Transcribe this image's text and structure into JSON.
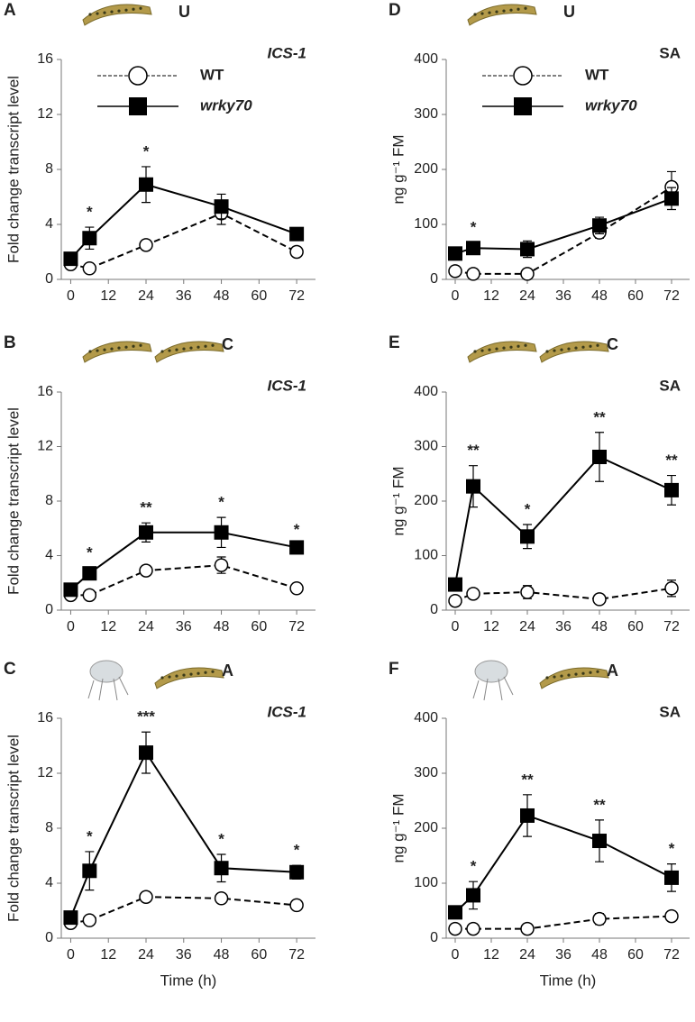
{
  "chart_data": [
    {
      "type": "line",
      "panel": "A",
      "treatment": "U",
      "title": "ICS-1",
      "title_italic": true,
      "ylabel": "Fold change transcript level",
      "x": [
        0,
        6,
        24,
        48,
        72
      ],
      "xlim": [
        -3,
        78
      ],
      "xticks": [
        0,
        12,
        24,
        36,
        48,
        60,
        72
      ],
      "ylim": [
        0,
        16
      ],
      "yticks": [
        0,
        4,
        8,
        12,
        16
      ],
      "legend": true,
      "series": [
        {
          "name": "WT",
          "color": "#000000",
          "line_style": "dashed",
          "marker": "circle",
          "values": [
            1.1,
            0.8,
            2.5,
            4.8,
            2.0
          ],
          "errors": [
            0.2,
            0.2,
            0.3,
            0.8,
            0.3
          ]
        },
        {
          "name": "wrky70",
          "name_italic": true,
          "color": "#000000",
          "line_style": "solid",
          "marker": "square",
          "values": [
            1.5,
            3.0,
            6.9,
            5.3,
            3.3
          ],
          "errors": [
            0.3,
            0.8,
            1.3,
            0.9,
            0.3
          ]
        }
      ],
      "significance": [
        null,
        "*",
        "*",
        null,
        null
      ]
    },
    {
      "type": "line",
      "panel": "B",
      "treatment": "C",
      "title": "ICS-1",
      "title_italic": true,
      "ylabel": "Fold change transcript level",
      "x": [
        0,
        6,
        24,
        48,
        72
      ],
      "xlim": [
        -3,
        78
      ],
      "xticks": [
        0,
        12,
        24,
        36,
        48,
        60,
        72
      ],
      "ylim": [
        0,
        16
      ],
      "yticks": [
        0,
        4,
        8,
        12,
        16
      ],
      "series": [
        {
          "color": "#000000",
          "line_style": "dashed",
          "marker": "circle",
          "values": [
            1.1,
            1.1,
            2.9,
            3.3,
            1.6
          ],
          "errors": [
            0.2,
            0.2,
            0.2,
            0.6,
            0.2
          ]
        },
        {
          "color": "#000000",
          "line_style": "solid",
          "marker": "square",
          "values": [
            1.5,
            2.7,
            5.7,
            5.7,
            4.6
          ],
          "errors": [
            0.2,
            0.4,
            0.7,
            1.1,
            0.2
          ]
        }
      ],
      "significance": [
        null,
        "*",
        "**",
        "*",
        "*"
      ]
    },
    {
      "type": "line",
      "panel": "C",
      "treatment": "A",
      "title": "ICS-1",
      "title_italic": true,
      "ylabel": "Fold change transcript level",
      "xlabel": "Time (h)",
      "x": [
        0,
        6,
        24,
        48,
        72
      ],
      "xlim": [
        -3,
        78
      ],
      "xticks": [
        0,
        12,
        24,
        36,
        48,
        60,
        72
      ],
      "ylim": [
        0,
        16
      ],
      "yticks": [
        0,
        4,
        8,
        12,
        16
      ],
      "series": [
        {
          "color": "#000000",
          "line_style": "dashed",
          "marker": "circle",
          "values": [
            1.1,
            1.3,
            3.0,
            2.9,
            2.4
          ],
          "errors": [
            0.2,
            0.2,
            0.2,
            0.3,
            0.3
          ]
        },
        {
          "color": "#000000",
          "line_style": "solid",
          "marker": "square",
          "values": [
            1.5,
            4.9,
            13.5,
            5.1,
            4.8
          ],
          "errors": [
            0.3,
            1.4,
            1.5,
            1.0,
            0.5
          ]
        }
      ],
      "significance": [
        null,
        "*",
        "***",
        "*",
        "*"
      ]
    },
    {
      "type": "line",
      "panel": "D",
      "treatment": "U",
      "title": "SA",
      "ylabel": "ng g⁻¹ FM",
      "x": [
        0,
        6,
        24,
        48,
        72
      ],
      "xlim": [
        -3,
        78
      ],
      "xticks": [
        0,
        12,
        24,
        36,
        48,
        60,
        72
      ],
      "ylim": [
        0,
        400
      ],
      "yticks": [
        0,
        100,
        200,
        300,
        400
      ],
      "legend": true,
      "series": [
        {
          "name": "WT",
          "color": "#000000",
          "line_style": "dashed",
          "marker": "circle",
          "values": [
            15,
            10,
            10,
            85,
            168
          ],
          "errors": [
            8,
            5,
            5,
            10,
            28
          ]
        },
        {
          "name": "wrky70",
          "name_italic": true,
          "color": "#000000",
          "line_style": "solid",
          "marker": "square",
          "values": [
            47,
            57,
            55,
            98,
            147
          ],
          "errors": [
            10,
            10,
            15,
            15,
            20
          ]
        }
      ],
      "significance": [
        null,
        "*",
        null,
        null,
        null
      ]
    },
    {
      "type": "line",
      "panel": "E",
      "treatment": "C",
      "title": "SA",
      "ylabel": "ng g⁻¹ FM",
      "x": [
        0,
        6,
        24,
        48,
        72
      ],
      "xlim": [
        -3,
        78
      ],
      "xticks": [
        0,
        12,
        24,
        36,
        48,
        60,
        72
      ],
      "ylim": [
        0,
        400
      ],
      "yticks": [
        0,
        100,
        200,
        300,
        400
      ],
      "series": [
        {
          "color": "#000000",
          "line_style": "dashed",
          "marker": "circle",
          "values": [
            17,
            30,
            33,
            20,
            40
          ],
          "errors": [
            5,
            8,
            12,
            3,
            15
          ]
        },
        {
          "color": "#000000",
          "line_style": "solid",
          "marker": "square",
          "values": [
            47,
            227,
            135,
            281,
            220
          ],
          "errors": [
            10,
            38,
            22,
            45,
            27
          ]
        }
      ],
      "significance": [
        null,
        "**",
        "*",
        "**",
        "**"
      ]
    },
    {
      "type": "line",
      "panel": "F",
      "treatment": "A",
      "title": "SA",
      "ylabel": "ng g⁻¹ FM",
      "xlabel": "Time (h)",
      "x": [
        0,
        6,
        24,
        48,
        72
      ],
      "xlim": [
        -3,
        78
      ],
      "xticks": [
        0,
        12,
        24,
        36,
        48,
        60,
        72
      ],
      "ylim": [
        0,
        400
      ],
      "yticks": [
        0,
        100,
        200,
        300,
        400
      ],
      "series": [
        {
          "color": "#000000",
          "line_style": "dashed",
          "marker": "circle",
          "values": [
            17,
            17,
            17,
            35,
            40
          ],
          "errors": [
            5,
            5,
            3,
            10,
            8
          ]
        },
        {
          "color": "#000000",
          "line_style": "solid",
          "marker": "square",
          "values": [
            47,
            78,
            223,
            177,
            110
          ],
          "errors": [
            10,
            25,
            38,
            38,
            25
          ]
        }
      ],
      "significance": [
        null,
        "*",
        "**",
        "**",
        "*"
      ]
    }
  ]
}
